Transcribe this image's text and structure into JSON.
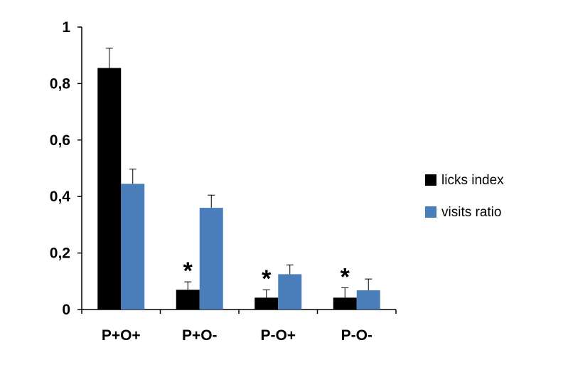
{
  "chart_data": {
    "type": "bar",
    "title": "",
    "xlabel": "",
    "ylabel": "",
    "categories": [
      "P+O+",
      "P+O-",
      "P-O+",
      "P-O-"
    ],
    "ylim": [
      0,
      1
    ],
    "yticks": [
      0,
      0.2,
      0.4,
      0.6,
      0.8,
      1
    ],
    "ytick_labels": [
      "0",
      "0,2",
      "0,4",
      "0,6",
      "0,8",
      "1"
    ],
    "grid": false,
    "legend_position": "right",
    "series": [
      {
        "name": "licks index",
        "color": "#000000",
        "values": [
          0.855,
          0.07,
          0.042,
          0.042
        ],
        "errors": [
          0.07,
          0.028,
          0.028,
          0.035
        ]
      },
      {
        "name": "visits ratio",
        "color": "#4a7ebb",
        "values": [
          0.445,
          0.36,
          0.125,
          0.068
        ],
        "errors": [
          0.052,
          0.045,
          0.033,
          0.04
        ]
      }
    ],
    "annotations": [
      {
        "category": "P+O-",
        "text": "*"
      },
      {
        "category": "P-O+",
        "text": "*"
      },
      {
        "category": "P-O-",
        "text": "*"
      }
    ]
  }
}
